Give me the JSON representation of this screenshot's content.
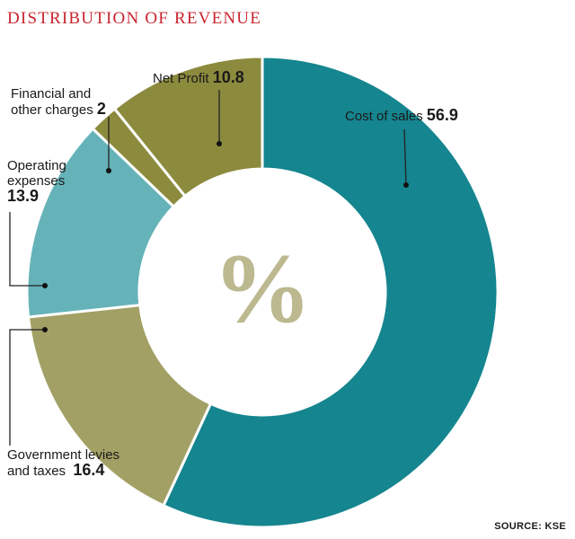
{
  "chart_data": {
    "type": "pie",
    "title": "DISTRIBUTION OF REVENUE",
    "center_label": "%",
    "slices": [
      {
        "name_lines": [
          "Cost of sales"
        ],
        "value": 56.9,
        "display": "56.9",
        "color": "#15858f"
      },
      {
        "name_lines": [
          "Government levies",
          "and taxes"
        ],
        "value": 16.4,
        "display": "16.4",
        "color": "#a3a066"
      },
      {
        "name_lines": [
          "Operating",
          "expenses"
        ],
        "value": 13.9,
        "display": "13.9",
        "color": "#65b3b8"
      },
      {
        "name_lines": [
          "Financial and",
          "other charges"
        ],
        "value": 2,
        "display": "2",
        "color": "#8c8a3d"
      },
      {
        "name_lines": [
          "Net Profit"
        ],
        "value": 10.8,
        "display": "10.8",
        "color": "#8c8a3d"
      }
    ],
    "source": "SOURCE: KSE"
  }
}
